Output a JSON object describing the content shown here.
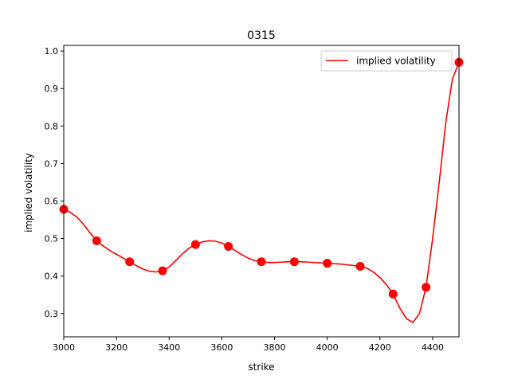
{
  "chart_data": {
    "type": "line",
    "title": "0315",
    "xlabel": "strike",
    "ylabel": "implied volatility",
    "xlim": [
      3000,
      4500
    ],
    "ylim": [
      0.238,
      1.015
    ],
    "grid": false,
    "legend_position": "upper right",
    "x_ticks": [
      "3000",
      "3200",
      "3400",
      "3600",
      "3800",
      "4000",
      "4200",
      "4400"
    ],
    "y_ticks": [
      "0.3",
      "0.4",
      "0.5",
      "0.6",
      "0.7",
      "0.8",
      "0.9",
      "1.0"
    ],
    "series": [
      {
        "name": "implied volatility",
        "color": "#ff0000",
        "kind": "line",
        "x": [
          3000,
          3025,
          3050,
          3075,
          3100,
          3125,
          3150,
          3175,
          3200,
          3225,
          3250,
          3275,
          3300,
          3325,
          3350,
          3375,
          3400,
          3425,
          3450,
          3475,
          3500,
          3525,
          3550,
          3575,
          3600,
          3625,
          3650,
          3675,
          3700,
          3725,
          3750,
          3775,
          3800,
          3825,
          3850,
          3875,
          3900,
          3925,
          3950,
          3975,
          4000,
          4025,
          4050,
          4075,
          4100,
          4125,
          4150,
          4175,
          4200,
          4225,
          4250,
          4275,
          4300,
          4325,
          4350,
          4375,
          4400,
          4425,
          4450,
          4475,
          4500
        ],
        "y": [
          0.578,
          0.57,
          0.557,
          0.538,
          0.515,
          0.494,
          0.48,
          0.468,
          0.458,
          0.448,
          0.438,
          0.428,
          0.419,
          0.413,
          0.411,
          0.414,
          0.424,
          0.441,
          0.459,
          0.474,
          0.484,
          0.491,
          0.494,
          0.493,
          0.488,
          0.479,
          0.468,
          0.457,
          0.448,
          0.441,
          0.438,
          0.436,
          0.436,
          0.437,
          0.438,
          0.439,
          0.438,
          0.437,
          0.436,
          0.435,
          0.434,
          0.433,
          0.432,
          0.43,
          0.428,
          0.426,
          0.421,
          0.411,
          0.396,
          0.377,
          0.352,
          0.315,
          0.287,
          0.276,
          0.3,
          0.37,
          0.5,
          0.65,
          0.81,
          0.925,
          0.97
        ]
      },
      {
        "name": "",
        "color": "#ff0000",
        "kind": "markers",
        "x": [
          3000,
          3125,
          3250,
          3375,
          3500,
          3625,
          3750,
          3875,
          4000,
          4125,
          4250,
          4375,
          4500
        ],
        "y": [
          0.578,
          0.494,
          0.438,
          0.414,
          0.484,
          0.479,
          0.438,
          0.438,
          0.434,
          0.426,
          0.352,
          0.37,
          0.97
        ]
      }
    ],
    "legend": [
      "implied volatility"
    ]
  }
}
